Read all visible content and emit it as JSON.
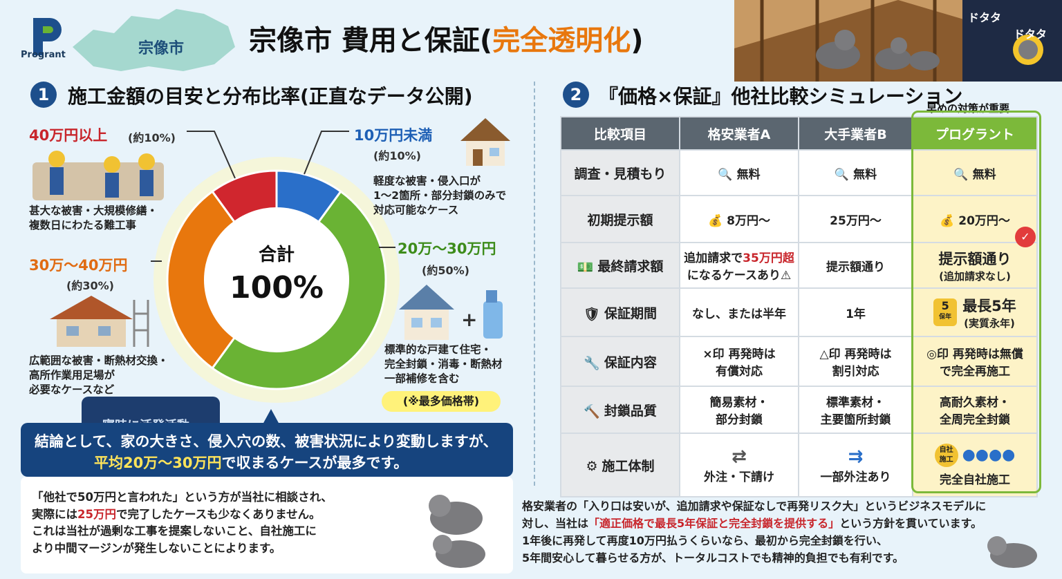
{
  "brand": {
    "logo_text": "Progrant",
    "city": "宗像市"
  },
  "title": {
    "main": "宗像市 費用と保証(",
    "highlight": "完全透明化",
    "end": ")"
  },
  "sound_effect": [
    "ドタタ",
    "ドタタ"
  ],
  "section1": {
    "number": "1",
    "title": "施工金額の目安と分布比率(正直なデータ公開)",
    "center_label": "合計",
    "center_value": "100%",
    "segments": [
      {
        "label": "40万円以上",
        "pct_text": "(約10%)",
        "desc": [
          "甚大な被害・大規模修繕・",
          "複数日にわたる難工事"
        ]
      },
      {
        "label": "10万円未満",
        "pct_text": "(約10%)",
        "desc": [
          "軽度な被害・侵入口が",
          "1〜2箇所・部分封鎖のみで",
          "対応可能なケース"
        ]
      },
      {
        "label": "20万〜30万円",
        "pct_text": "(約50%)",
        "desc": [
          "標準的な戸建て住宅・",
          "完全封鎖・消毒・断熱材",
          "一部補修を含む"
        ],
        "tag": "(※最多価格帯)"
      },
      {
        "label": "30万〜40万円",
        "pct_text": "(約30%)",
        "desc": [
          "広範囲な被害・断熱材交換・",
          "高所作業用足場が",
          "必要なケースなど"
        ]
      }
    ],
    "night_tab": "寝時に活発活動",
    "conclusion": {
      "line1": "結論として、家の大きさ、侵入穴の数、被害状況により変動しますが、",
      "line2_hl": "平均20万〜30万円",
      "line2_rest": "で収まるケースが最多です。"
    },
    "note": {
      "l1": "「他社で50万円と言われた」という方が当社に相談され、",
      "l2_a": "実際には",
      "l2_hl": "25万円",
      "l2_b": "で完了したケースも少なくありません。",
      "l3": "これは当社が過剰な工事を提案しないこと、自社施工に",
      "l4": "より中間マージンが発生しないことによります。"
    }
  },
  "section2": {
    "number": "2",
    "title": "『価格×保証』他社比較シミュレーション",
    "early_note": "早めの対策が重要",
    "headers": [
      "比較項目",
      "格安業者A",
      "大手業者B",
      "プログラント"
    ],
    "rows": [
      {
        "label": "調査・見積もり",
        "a": "無料",
        "b": "無料",
        "p": "無料"
      },
      {
        "label": "初期提示額",
        "a": "8万円〜",
        "b": "25万円〜",
        "p": "20万円〜"
      },
      {
        "label": "最終請求額",
        "a1": "追加請求で",
        "a_hl": "35万円超",
        "a2": "になるケースあり",
        "b": "提示額通り",
        "p1": "提示額通り",
        "p2": "(追加請求なし)"
      },
      {
        "label": "保証期間",
        "a": "なし、または半年",
        "b": "1年",
        "badge": "5",
        "badge_sub": "保年",
        "p1": "最長5年",
        "p2": "(実質永年)"
      },
      {
        "label": "保証内容",
        "a1": "×印 再発時は",
        "a2": "有償対応",
        "b1": "△印 再発時は",
        "b2": "割引対応",
        "p1": "◎印 再発時は無償",
        "p2": "で完全再施工"
      },
      {
        "label": "封鎖品質",
        "a1": "簡易素材・",
        "a2": "部分封鎖",
        "b1": "標準素材・",
        "b2": "主要箇所封鎖",
        "p1": "高耐久素材・",
        "p2": "全周完全封鎖"
      },
      {
        "label": "施工体制",
        "a": "外注・下請け",
        "b": "一部外注あり",
        "p_badge1": "自社",
        "p_badge2": "施工",
        "p": "完全自社施工"
      }
    ],
    "bottom": {
      "l1": "格安業者の「入り口は安いが、追加請求や保証なしで再発リスク大」というビジネスモデルに",
      "l2_a": "対し、当社は",
      "l2_hl": "「適正価格で最長5年保証と完全封鎖を提供する」",
      "l2_b": "という方針を貫いています。",
      "l3": "1年後に再発して再度10万円払うくらいなら、最初から完全封鎖を行い、",
      "l4": "5年間安心して暮らせる方が、トータルコストでも精神的負担でも有利です。"
    }
  },
  "chart_data": {
    "type": "pie",
    "donut": true,
    "categories": [
      "10万円未満",
      "20万〜30万円",
      "30万〜40万円",
      "40万円以上"
    ],
    "values": [
      10,
      50,
      30,
      10
    ],
    "colors": [
      "#2a6fc9",
      "#6ab334",
      "#e8770d",
      "#d0262e"
    ]
  }
}
